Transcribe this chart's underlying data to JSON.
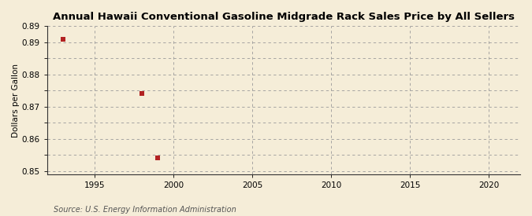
{
  "title": "Annual Hawaii Conventional Gasoline Midgrade Rack Sales Price by All Sellers",
  "ylabel": "Dollars per Gallon",
  "source": "Source: U.S. Energy Information Administration",
  "data_x": [
    1993,
    1998,
    1999
  ],
  "data_y": [
    0.891,
    0.874,
    0.854
  ],
  "xlim": [
    1992,
    2022
  ],
  "ylim": [
    0.849,
    0.895
  ],
  "xticks": [
    1995,
    2000,
    2005,
    2010,
    2015,
    2020
  ],
  "ytick_positions": [
    0.85,
    0.855,
    0.86,
    0.865,
    0.87,
    0.875,
    0.88,
    0.885,
    0.89,
    0.895
  ],
  "ytick_labels": [
    "0.85",
    "",
    "0.86",
    "",
    "0.87",
    "",
    "0.88",
    "",
    "0.89",
    "0.89"
  ],
  "marker_color": "#b22222",
  "marker_size": 4,
  "bg_color": "#f5edd8",
  "grid_color": "#999999",
  "title_fontsize": 9.5,
  "label_fontsize": 7.5,
  "tick_fontsize": 7.5,
  "source_fontsize": 7
}
